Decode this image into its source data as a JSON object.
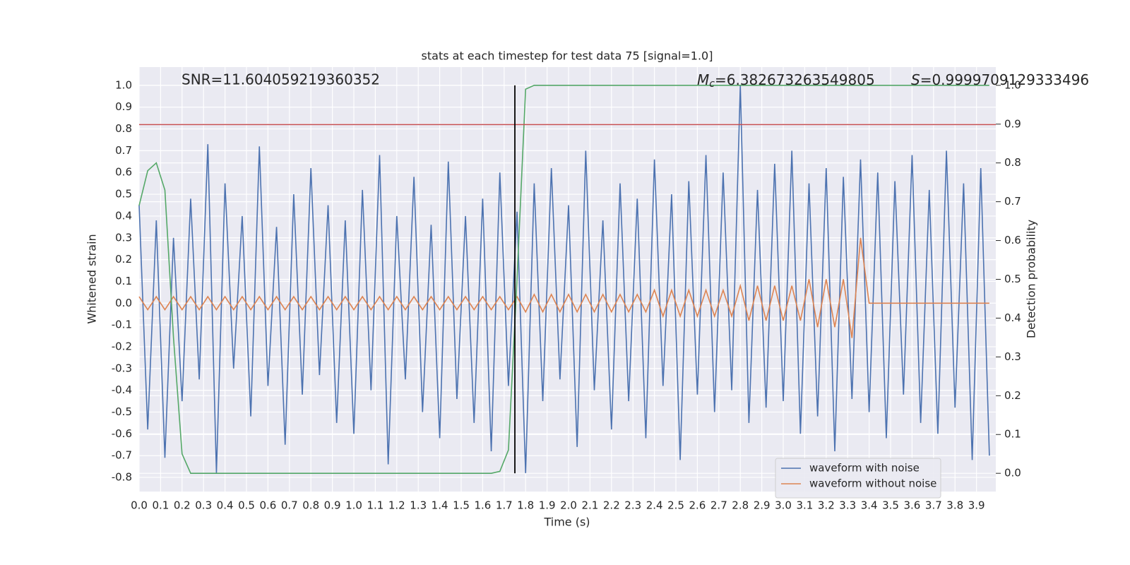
{
  "chart_data": {
    "type": "line",
    "title": "stats at each timestep for test data 75 [signal=1.0]",
    "x_label": "Time (s)",
    "y_label": "Whitened strain",
    "y2_label": "Detection probability",
    "annotations": {
      "snr": "SNR=11.604059219360352",
      "mc": {
        "symbol": "M",
        "subscript": "c",
        "text": "=6.382673263549805"
      },
      "s": {
        "symbol": "S",
        "text": "=0.9999709129333496"
      }
    },
    "grid": true,
    "legend": "lower right",
    "hline": {
      "value": 0.82,
      "color": "#c44e52"
    },
    "vline": {
      "value": 1.75,
      "color": "#000000"
    },
    "xlim": [
      0,
      3.99
    ],
    "ylim": [
      -0.865,
      1.084
    ],
    "y2lim": [
      -0.047,
      1.047
    ],
    "xticks": [
      {
        "value": 0,
        "label": "0.0"
      },
      0.1,
      0.2,
      0.3,
      0.4,
      0.5,
      0.6,
      0.7,
      0.8,
      0.9,
      {
        "value": 1,
        "label": "1.0"
      },
      1.1,
      1.2,
      1.3,
      1.4,
      1.5,
      1.6,
      1.7,
      1.8,
      1.9,
      {
        "value": 2,
        "label": "2.0"
      },
      2.1,
      2.2,
      2.3,
      2.4,
      2.5,
      2.6,
      2.7,
      2.8,
      2.9,
      {
        "value": 3,
        "label": "3.0"
      },
      3.1,
      3.2,
      3.3,
      3.4,
      3.5,
      3.6,
      3.7,
      3.8,
      3.9
    ],
    "yticks": [
      -0.8,
      -0.7,
      -0.6,
      -0.5,
      -0.4,
      -0.3,
      -0.2,
      -0.1,
      {
        "value": 0,
        "label": "0.0"
      },
      0.1,
      0.2,
      0.3,
      0.4,
      0.5,
      0.6,
      0.7,
      0.8,
      0.9,
      {
        "value": 1,
        "label": "1.0"
      }
    ],
    "y2ticks": [
      {
        "value": 0,
        "label": "0.0"
      },
      0.1,
      0.2,
      0.3,
      0.4,
      0.5,
      0.6,
      0.7,
      0.8,
      0.9,
      {
        "value": 1,
        "label": "1.0"
      }
    ],
    "x": [
      0,
      0.04,
      0.08,
      0.12,
      0.16,
      0.2,
      0.24,
      0.28,
      0.32,
      0.36,
      0.4,
      0.44,
      0.48,
      0.52,
      0.56,
      0.6,
      0.64,
      0.68,
      0.72,
      0.76,
      0.8,
      0.84,
      0.88,
      0.92,
      0.96,
      1,
      1.04,
      1.08,
      1.12,
      1.16,
      1.2,
      1.24,
      1.28,
      1.32,
      1.36,
      1.4,
      1.44,
      1.48,
      1.52,
      1.56,
      1.6,
      1.64,
      1.68,
      1.72,
      1.76,
      1.8,
      1.84,
      1.88,
      1.92,
      1.96,
      2,
      2.04,
      2.08,
      2.12,
      2.16,
      2.2,
      2.24,
      2.28,
      2.32,
      2.36,
      2.4,
      2.44,
      2.48,
      2.52,
      2.56,
      2.6,
      2.64,
      2.68,
      2.72,
      2.76,
      2.8,
      2.84,
      2.88,
      2.92,
      2.96,
      3,
      3.04,
      3.08,
      3.12,
      3.16,
      3.2,
      3.24,
      3.28,
      3.32,
      3.36,
      3.4,
      3.44,
      3.48,
      3.52,
      3.56,
      3.6,
      3.64,
      3.68,
      3.72,
      3.76,
      3.8,
      3.84,
      3.88,
      3.92,
      3.96
    ],
    "series": [
      {
        "name": "waveform with noise",
        "color": "#4c72b0",
        "values": [
          0.45,
          -0.58,
          0.38,
          -0.71,
          0.3,
          -0.45,
          0.48,
          -0.35,
          0.73,
          -0.78,
          0.55,
          -0.3,
          0.4,
          -0.52,
          0.72,
          -0.38,
          0.35,
          -0.65,
          0.5,
          -0.42,
          0.62,
          -0.33,
          0.45,
          -0.55,
          0.38,
          -0.6,
          0.52,
          -0.4,
          0.68,
          -0.74,
          0.4,
          -0.35,
          0.58,
          -0.5,
          0.36,
          -0.62,
          0.65,
          -0.44,
          0.4,
          -0.55,
          0.48,
          -0.68,
          0.6,
          -0.38,
          0.42,
          -0.78,
          0.55,
          -0.45,
          0.62,
          -0.35,
          0.45,
          -0.66,
          0.7,
          -0.4,
          0.38,
          -0.58,
          0.55,
          -0.45,
          0.48,
          -0.62,
          0.66,
          -0.38,
          0.5,
          -0.72,
          0.56,
          -0.42,
          0.68,
          -0.5,
          0.6,
          -0.4,
          1.0,
          -0.55,
          0.52,
          -0.48,
          0.64,
          -0.45,
          0.7,
          -0.6,
          0.55,
          -0.52,
          0.62,
          -0.68,
          0.58,
          -0.44,
          0.66,
          -0.5,
          0.6,
          -0.62,
          0.56,
          -0.42,
          0.68,
          -0.55,
          0.52,
          -0.6,
          0.7,
          -0.48,
          0.55,
          -0.72,
          0.62,
          -0.7
        ]
      },
      {
        "name": "waveform without noise",
        "color": "#dd8452",
        "values": [
          0.03,
          -0.03,
          0.03,
          -0.03,
          0.03,
          -0.03,
          0.03,
          -0.03,
          0.03,
          -0.03,
          0.03,
          -0.03,
          0.03,
          -0.03,
          0.03,
          -0.03,
          0.03,
          -0.03,
          0.03,
          -0.03,
          0.03,
          -0.03,
          0.03,
          -0.03,
          0.03,
          -0.03,
          0.03,
          -0.03,
          0.03,
          -0.03,
          0.03,
          -0.03,
          0.03,
          -0.03,
          0.03,
          -0.03,
          0.03,
          -0.03,
          0.03,
          -0.03,
          0.03,
          -0.03,
          0.03,
          -0.03,
          0.03,
          -0.04,
          0.04,
          -0.04,
          0.04,
          -0.04,
          0.04,
          -0.04,
          0.04,
          -0.04,
          0.04,
          -0.04,
          0.04,
          -0.04,
          0.04,
          -0.04,
          0.06,
          -0.06,
          0.06,
          -0.06,
          0.06,
          -0.06,
          0.06,
          -0.06,
          0.06,
          -0.06,
          0.08,
          -0.08,
          0.08,
          -0.08,
          0.08,
          -0.08,
          0.08,
          -0.08,
          0.11,
          -0.11,
          0.11,
          -0.11,
          0.11,
          -0.16,
          0.3,
          0,
          0,
          0,
          0,
          0,
          0,
          0,
          0,
          0,
          0,
          0,
          0,
          0,
          0,
          0
        ]
      },
      {
        "color": "#55a868",
        "axis": "y2",
        "values": [
          0.69,
          0.78,
          0.8,
          0.73,
          0.35,
          0.05,
          0,
          0,
          0,
          0,
          0,
          0,
          0,
          0,
          0,
          0,
          0,
          0,
          0,
          0,
          0,
          0,
          0,
          0,
          0,
          0,
          0,
          0,
          0,
          0,
          0,
          0,
          0,
          0,
          0,
          0,
          0,
          0,
          0,
          0,
          0,
          0,
          0.005,
          0.06,
          0.5,
          0.99,
          1,
          1,
          1,
          1,
          1,
          1,
          1,
          1,
          1,
          1,
          1,
          1,
          1,
          1,
          1,
          1,
          1,
          1,
          1,
          1,
          1,
          1,
          1,
          1,
          1,
          1,
          1,
          1,
          1,
          1,
          1,
          1,
          1,
          1,
          1,
          1,
          1,
          1,
          1,
          1,
          1,
          1,
          1,
          1,
          1,
          1,
          1,
          1,
          1,
          1,
          1,
          1,
          1,
          1
        ]
      }
    ]
  }
}
